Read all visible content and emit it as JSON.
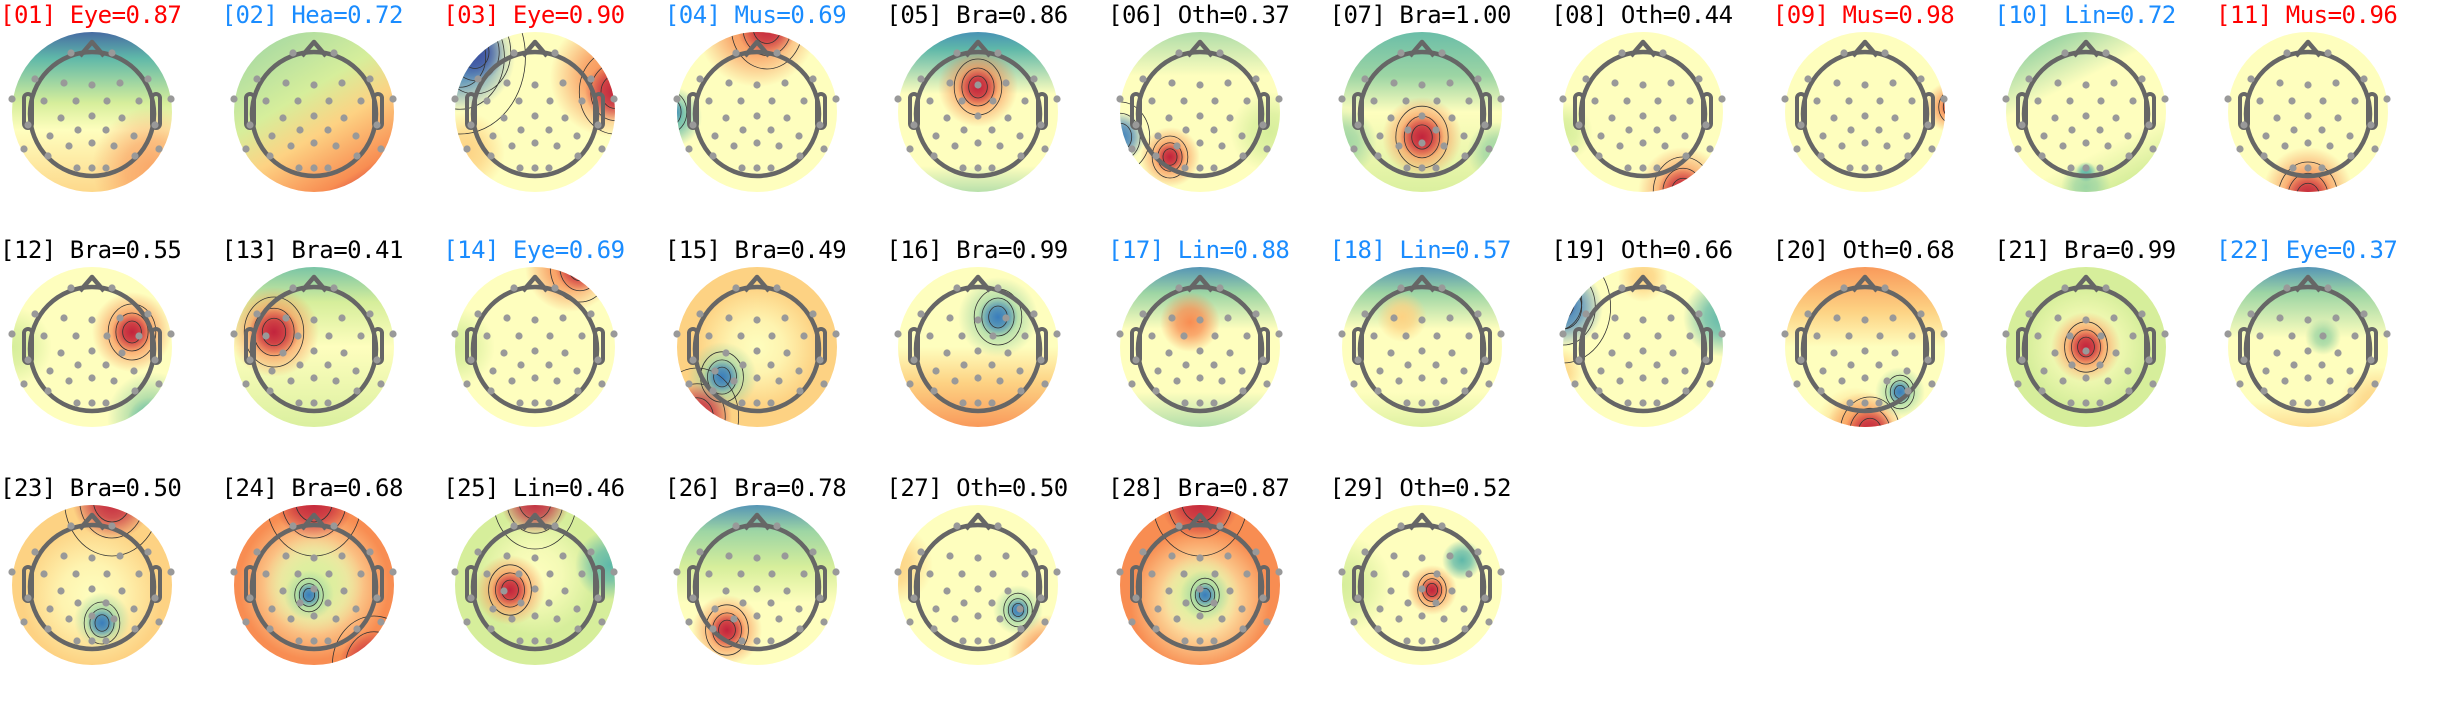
{
  "figure": {
    "label_colors": {
      "red": "#ff0000",
      "blue": "#1a8cff",
      "black": "#000000"
    },
    "colormap": [
      "#3d4fa0",
      "#3a7dbc",
      "#5fb8a9",
      "#9dd5a4",
      "#d6ee9b",
      "#fefebe",
      "#fdd283",
      "#f88d52",
      "#c2243d"
    ]
  },
  "chart_data": {
    "type": "heatmap",
    "panels": [
      {
        "title": "[01] Eye=0.87",
        "component": 1,
        "class": "Eye",
        "score": 0.87,
        "color": "#ff0000"
      },
      {
        "title": "[02] Hea=0.72",
        "component": 2,
        "class": "Hea",
        "score": 0.72,
        "color": "#1a8cff"
      },
      {
        "title": "[03] Eye=0.90",
        "component": 3,
        "class": "Eye",
        "score": 0.9,
        "color": "#ff0000"
      },
      {
        "title": "[04] Mus=0.69",
        "component": 4,
        "class": "Mus",
        "score": 0.69,
        "color": "#1a8cff"
      },
      {
        "title": "[05] Bra=0.86",
        "component": 5,
        "class": "Bra",
        "score": 0.86,
        "color": "#000000"
      },
      {
        "title": "[06] Oth=0.37",
        "component": 6,
        "class": "Oth",
        "score": 0.37,
        "color": "#000000"
      },
      {
        "title": "[07] Bra=1.00",
        "component": 7,
        "class": "Bra",
        "score": 1.0,
        "color": "#000000"
      },
      {
        "title": "[08] Oth=0.44",
        "component": 8,
        "class": "Oth",
        "score": 0.44,
        "color": "#000000"
      },
      {
        "title": "[09] Mus=0.98",
        "component": 9,
        "class": "Mus",
        "score": 0.98,
        "color": "#ff0000"
      },
      {
        "title": "[10] Lin=0.72",
        "component": 10,
        "class": "Lin",
        "score": 0.72,
        "color": "#1a8cff"
      },
      {
        "title": "[11] Mus=0.96",
        "component": 11,
        "class": "Mus",
        "score": 0.96,
        "color": "#ff0000"
      },
      {
        "title": "[12] Bra=0.55",
        "component": 12,
        "class": "Bra",
        "score": 0.55,
        "color": "#000000"
      },
      {
        "title": "[13] Bra=0.41",
        "component": 13,
        "class": "Bra",
        "score": 0.41,
        "color": "#000000"
      },
      {
        "title": "[14] Eye=0.69",
        "component": 14,
        "class": "Eye",
        "score": 0.69,
        "color": "#1a8cff"
      },
      {
        "title": "[15] Bra=0.49",
        "component": 15,
        "class": "Bra",
        "score": 0.49,
        "color": "#000000"
      },
      {
        "title": "[16] Bra=0.99",
        "component": 16,
        "class": "Bra",
        "score": 0.99,
        "color": "#000000"
      },
      {
        "title": "[17] Lin=0.88",
        "component": 17,
        "class": "Lin",
        "score": 0.88,
        "color": "#1a8cff"
      },
      {
        "title": "[18] Lin=0.57",
        "component": 18,
        "class": "Lin",
        "score": 0.57,
        "color": "#1a8cff"
      },
      {
        "title": "[19] Oth=0.66",
        "component": 19,
        "class": "Oth",
        "score": 0.66,
        "color": "#000000"
      },
      {
        "title": "[20] Oth=0.68",
        "component": 20,
        "class": "Oth",
        "score": 0.68,
        "color": "#000000"
      },
      {
        "title": "[21] Bra=0.99",
        "component": 21,
        "class": "Bra",
        "score": 0.99,
        "color": "#000000"
      },
      {
        "title": "[22] Eye=0.37",
        "component": 22,
        "class": "Eye",
        "score": 0.37,
        "color": "#1a8cff"
      },
      {
        "title": "[23] Bra=0.50",
        "component": 23,
        "class": "Bra",
        "score": 0.5,
        "color": "#000000"
      },
      {
        "title": "[24] Bra=0.68",
        "component": 24,
        "class": "Bra",
        "score": 0.68,
        "color": "#000000"
      },
      {
        "title": "[25] Lin=0.46",
        "component": 25,
        "class": "Lin",
        "score": 0.46,
        "color": "#000000"
      },
      {
        "title": "[26] Bra=0.78",
        "component": 26,
        "class": "Bra",
        "score": 0.78,
        "color": "#000000"
      },
      {
        "title": "[27] Oth=0.50",
        "component": 27,
        "class": "Oth",
        "score": 0.5,
        "color": "#000000"
      },
      {
        "title": "[28] Bra=0.87",
        "component": 28,
        "class": "Bra",
        "score": 0.87,
        "color": "#000000"
      },
      {
        "title": "[29] Oth=0.52",
        "component": 29,
        "class": "Oth",
        "score": 0.52,
        "color": "#000000"
      }
    ]
  }
}
